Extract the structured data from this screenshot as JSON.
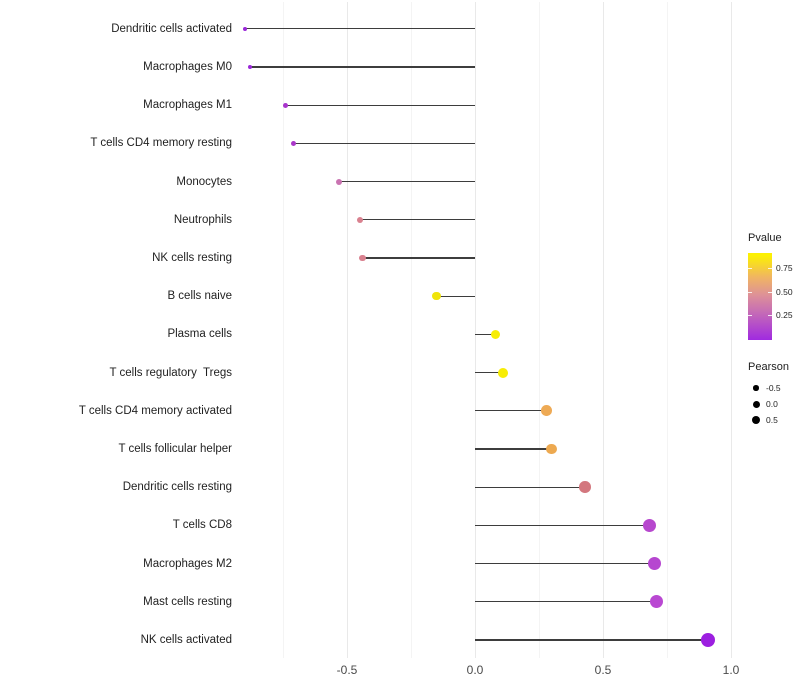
{
  "chart_data": {
    "type": "bar",
    "style": "lollipop",
    "orientation": "horizontal",
    "title": "",
    "xlabel": "",
    "ylabel": "",
    "categories": [
      "Dendritic cells activated",
      "Macrophages M0",
      "Macrophages M1",
      "T cells CD4 memory resting",
      "Monocytes",
      "Neutrophils",
      "NK cells resting",
      "B cells naive",
      "Plasma cells",
      "T cells regulatory  Tregs",
      "T cells CD4 memory activated",
      "T cells follicular helper",
      "Dendritic cells resting",
      "T cells CD8",
      "Macrophages M2",
      "Mast cells resting",
      "NK cells activated"
    ],
    "values": [
      -0.9,
      -0.88,
      -0.74,
      -0.71,
      -0.53,
      -0.45,
      -0.44,
      -0.15,
      0.08,
      0.11,
      0.28,
      0.3,
      0.43,
      0.68,
      0.7,
      0.71,
      0.91
    ],
    "point_colors": [
      "#9a27d8",
      "#9a27d8",
      "#a834cc",
      "#aa37c9",
      "#c973b1",
      "#d9818f",
      "#d9818f",
      "#f0e40a",
      "#f7ed05",
      "#f7ed05",
      "#eeaa55",
      "#eda950",
      "#d3777e",
      "#b748ce",
      "#b646d0",
      "#b948d2",
      "#9c1fe0"
    ],
    "xlim": [
      -0.93,
      1.06
    ],
    "x_ticks": [
      "-0.5",
      "0.0",
      "0.5",
      "1.0"
    ],
    "x_tick_values": [
      -0.5,
      0.0,
      0.5,
      1.0
    ],
    "x_minor_tick_values": [
      -0.75,
      -0.25,
      0.25,
      0.75
    ],
    "grid": "vertical-major-and-minor",
    "legend_position": "right",
    "stem_color": "#3d3d3d"
  },
  "legends": {
    "pvalue": {
      "title": "Pvalue",
      "tick_labels": [
        "0.75",
        "0.50",
        "0.25"
      ],
      "gradient_top_to_bottom": [
        "#fcf003",
        "#f0b463",
        "#de9197",
        "#c76eb4",
        "#a02ae0"
      ]
    },
    "pearson": {
      "title": "Pearson",
      "tick_labels": [
        "-0.5",
        "0.0",
        "0.5"
      ]
    }
  }
}
